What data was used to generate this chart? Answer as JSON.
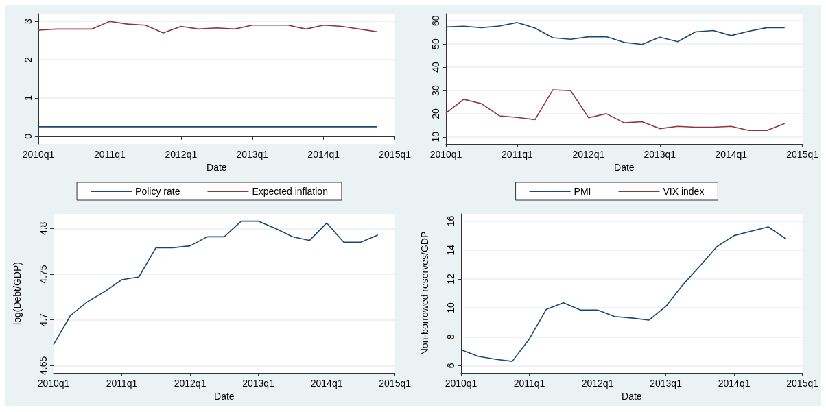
{
  "chart_data": [
    {
      "type": "line",
      "xlabel": "Date",
      "categories": [
        "2010q1",
        null,
        null,
        null,
        "2011q1",
        null,
        null,
        null,
        "2012q1",
        null,
        null,
        null,
        "2013q1",
        null,
        null,
        null,
        "2014q1",
        null,
        null,
        null,
        "2015q1"
      ],
      "ylim": [
        -0.2,
        3.2
      ],
      "yticks": [
        0,
        1,
        2,
        3
      ],
      "grid": "y",
      "legend": "bottom",
      "marker": "none",
      "series": [
        {
          "name": "Policy rate",
          "color": "#1a476f",
          "values": [
            0.25,
            0.25,
            0.25,
            0.25,
            0.25,
            0.25,
            0.25,
            0.25,
            0.25,
            0.25,
            0.25,
            0.25,
            0.25,
            0.25,
            0.25,
            0.25,
            0.25,
            0.25,
            0.25,
            0.25,
            null
          ]
        },
        {
          "name": "Expected inflation",
          "color": "#90353b",
          "values": [
            2.77,
            2.8,
            2.8,
            2.8,
            3.0,
            2.93,
            2.9,
            2.7,
            2.87,
            2.8,
            2.83,
            2.8,
            2.9,
            2.9,
            2.9,
            2.8,
            2.9,
            2.87,
            2.8,
            2.73,
            null
          ]
        }
      ]
    },
    {
      "type": "line",
      "xlabel": "Date",
      "categories": [
        "2010q1",
        null,
        null,
        null,
        "2011q1",
        null,
        null,
        null,
        "2012q1",
        null,
        null,
        null,
        "2013q1",
        null,
        null,
        null,
        "2014q1",
        null,
        null,
        null,
        "2015q1"
      ],
      "ylim": [
        7,
        63
      ],
      "yticks": [
        10,
        20,
        30,
        40,
        50,
        60
      ],
      "grid": "y",
      "legend": "bottom",
      "marker": "none",
      "series": [
        {
          "name": "PMI",
          "color": "#1a476f",
          "values": [
            57.3,
            57.6,
            57.0,
            57.7,
            59.2,
            56.8,
            52.7,
            52.0,
            53.1,
            53.1,
            50.7,
            49.8,
            52.9,
            51.0,
            55.2,
            55.8,
            53.6,
            55.5,
            57.0,
            57.0,
            null
          ]
        },
        {
          "name": "VIX index",
          "color": "#90353b",
          "values": [
            20.3,
            26.2,
            24.3,
            19.1,
            18.4,
            17.5,
            30.3,
            29.9,
            18.3,
            20.0,
            16.1,
            16.6,
            13.6,
            14.6,
            14.2,
            14.2,
            14.6,
            12.8,
            12.8,
            15.8,
            null
          ]
        }
      ]
    },
    {
      "type": "line",
      "xlabel": "Date",
      "ylabel": "log(Debt/GDP)",
      "categories": [
        "2010q1",
        null,
        null,
        null,
        "2011q1",
        null,
        null,
        null,
        "2012q1",
        null,
        null,
        null,
        "2013q1",
        null,
        null,
        null,
        "2014q1",
        null,
        null,
        null,
        "2015q1"
      ],
      "ylim": [
        4.642,
        4.816
      ],
      "yticks": [
        4.65,
        4.7,
        4.75,
        4.8
      ],
      "grid": "y",
      "marker": "none",
      "series": [
        {
          "color": "#1a476f",
          "values": [
            4.673,
            4.705,
            4.72,
            4.731,
            4.744,
            4.747,
            4.779,
            4.779,
            4.781,
            4.791,
            4.791,
            4.808,
            4.808,
            4.8,
            4.791,
            4.787,
            4.806,
            4.785,
            4.785,
            4.793,
            null
          ]
        }
      ]
    },
    {
      "type": "line",
      "xlabel": "Date",
      "ylabel": "Non-borrowed reserves/GDP",
      "categories": [
        "2010q1",
        null,
        null,
        null,
        "2011q1",
        null,
        null,
        null,
        "2012q1",
        null,
        null,
        null,
        "2013q1",
        null,
        null,
        null,
        "2014q1",
        null,
        null,
        null,
        "2015q1"
      ],
      "ylim": [
        5.5,
        16.5
      ],
      "yticks": [
        6,
        8,
        10,
        12,
        14,
        16
      ],
      "grid": "y",
      "marker": "none",
      "series": [
        {
          "color": "#1a476f",
          "values": [
            7.1,
            6.65,
            6.45,
            6.3,
            7.85,
            9.9,
            10.35,
            9.85,
            9.85,
            9.4,
            9.3,
            9.15,
            10.1,
            11.6,
            12.9,
            14.25,
            15.0,
            15.3,
            15.6,
            14.8,
            null
          ]
        }
      ]
    }
  ]
}
